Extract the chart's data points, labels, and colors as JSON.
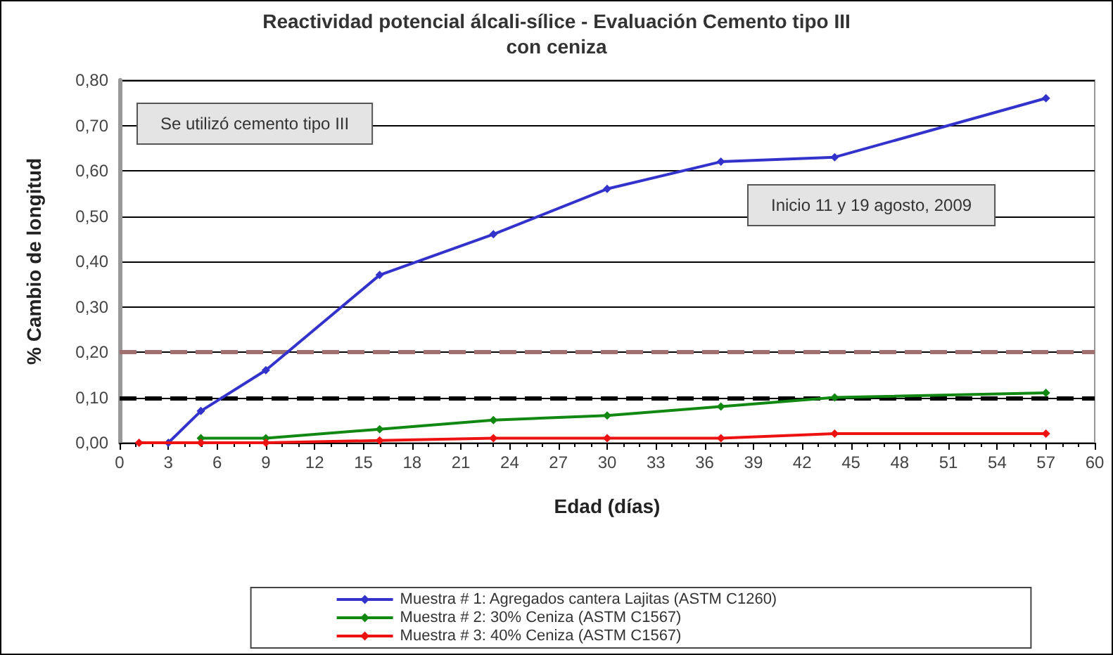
{
  "chart_data": {
    "type": "line",
    "title": "Reactividad potencial álcali-sílice - Evaluación Cemento tipo III",
    "subtitle": "con ceniza",
    "xlabel": "Edad (días)",
    "ylabel": "% Cambio de longitud",
    "annotations": [
      "Se utilizó cemento tipo III",
      "Inicio 11 y 19 agosto, 2009"
    ],
    "series": [
      {
        "name": "Muestra # 1: Agregados cantera Lajitas (ASTM C1260)",
        "color": "#3333cc",
        "x": [
          3,
          5,
          9,
          16,
          23,
          30,
          37,
          44,
          57
        ],
        "values": [
          0,
          0.07,
          0.16,
          0.37,
          0.46,
          0.56,
          0.62,
          0.63,
          0.76
        ]
      },
      {
        "name": "Muestra # 2: 30% Ceniza (ASTM C1567)",
        "color": "#118811",
        "x": [
          5,
          9,
          16,
          23,
          30,
          37,
          44,
          57
        ],
        "values": [
          0.01,
          0.01,
          0.03,
          0.05,
          0.06,
          0.08,
          0.1,
          0.11
        ]
      },
      {
        "name": "Muestra # 3: 40% Ceniza (ASTM C1567)",
        "color": "#ee1111",
        "x": [
          1.2,
          5,
          9,
          16,
          23,
          30,
          37,
          44,
          57
        ],
        "values": [
          0,
          0,
          0,
          0.005,
          0.01,
          0.01,
          0.01,
          0.02,
          0.02
        ]
      }
    ],
    "xlim": [
      0,
      60
    ],
    "xticks": [
      0,
      3,
      6,
      9,
      12,
      15,
      18,
      21,
      24,
      27,
      30,
      33,
      36,
      39,
      42,
      45,
      48,
      51,
      54,
      57,
      60
    ],
    "ylim": [
      0,
      0.8
    ],
    "yticks": [
      {
        "value": 0,
        "label": "0,00"
      },
      {
        "value": 0.1,
        "label": "0,10"
      },
      {
        "value": 0.2,
        "label": "0,20"
      },
      {
        "value": 0.3,
        "label": "0,30"
      },
      {
        "value": 0.4,
        "label": "0,40"
      },
      {
        "value": 0.5,
        "label": "0,50"
      },
      {
        "value": 0.6,
        "label": "0,60"
      },
      {
        "value": 0.7,
        "label": "0,70"
      },
      {
        "value": 0.8,
        "label": "0,80"
      }
    ],
    "ref_lines": [
      {
        "axis": "y",
        "value": 0.2,
        "color": "#a07070",
        "line_style": "dashed"
      },
      {
        "axis": "y",
        "value": 0.1,
        "color": "#000000",
        "line_style": "dashed"
      }
    ],
    "grid": "y",
    "legend": "bottom",
    "marker": "diamond",
    "line_style": "solid"
  }
}
